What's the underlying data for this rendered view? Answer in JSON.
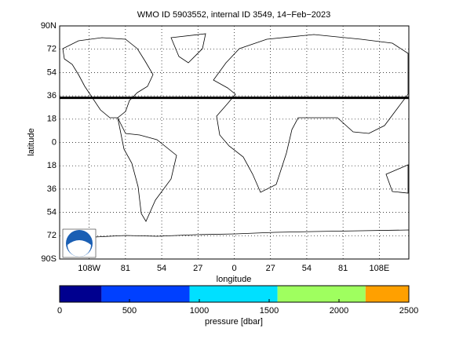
{
  "chart_data": {
    "type": "map",
    "title": "WMO ID 5903552, internal ID 3549, 14−Feb−2023",
    "x_label": "longitude",
    "y_label": "latitude",
    "xlim": [
      -130,
      130
    ],
    "ylim": [
      -90,
      90
    ],
    "xticks": [
      {
        "value": -108,
        "label": "108W"
      },
      {
        "value": -81,
        "label": "81"
      },
      {
        "value": -54,
        "label": "54"
      },
      {
        "value": -27,
        "label": "27"
      },
      0,
      {
        "value": 27,
        "label": "27"
      },
      54,
      81,
      {
        "value": 108,
        "label": "108E"
      }
    ],
    "yticks": [
      {
        "value": 90,
        "label": "90N"
      },
      72,
      54,
      36,
      18,
      0,
      {
        "value": -18,
        "label": "18"
      },
      {
        "value": -36,
        "label": "36"
      },
      {
        "value": -54,
        "label": "54"
      },
      {
        "value": -72,
        "label": "72"
      },
      {
        "value": -90,
        "label": "90S"
      }
    ],
    "grid": true,
    "series": [
      {
        "x": [
          -130,
          130
        ],
        "values": [
          34.5,
          34.5
        ],
        "color": "#000000"
      }
    ],
    "colorbar": {
      "label": "pressure [dbar]",
      "lim": [
        0,
        2500
      ],
      "ticks": [
        0,
        500,
        1000,
        1500,
        2000,
        2500
      ],
      "edges": [
        0,
        300,
        930,
        1560,
        2190,
        2500
      ],
      "colors": [
        "#00008f",
        "#0040ff",
        "#00e0ff",
        "#9fff5f",
        "#ffa000"
      ]
    }
  }
}
